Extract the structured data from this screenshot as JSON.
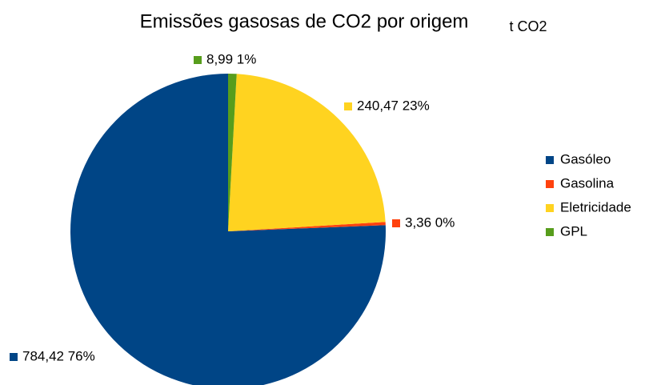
{
  "chart_data": {
    "type": "pie",
    "title": "Emissões gasosas de CO2 por origem",
    "subtitle": "t CO2",
    "categories": [
      "Gasóleo",
      "Gasolina",
      "Eletricidade",
      "GPL"
    ],
    "values": [
      784.42,
      3.36,
      240.47,
      8.99
    ],
    "value_labels": [
      "784,42 76%",
      "3,36 0%",
      "240,47 23%",
      "8,99 1%"
    ],
    "colors": [
      "#004586",
      "#ff420e",
      "#ffd320",
      "#579d1c"
    ],
    "legend": "right"
  }
}
